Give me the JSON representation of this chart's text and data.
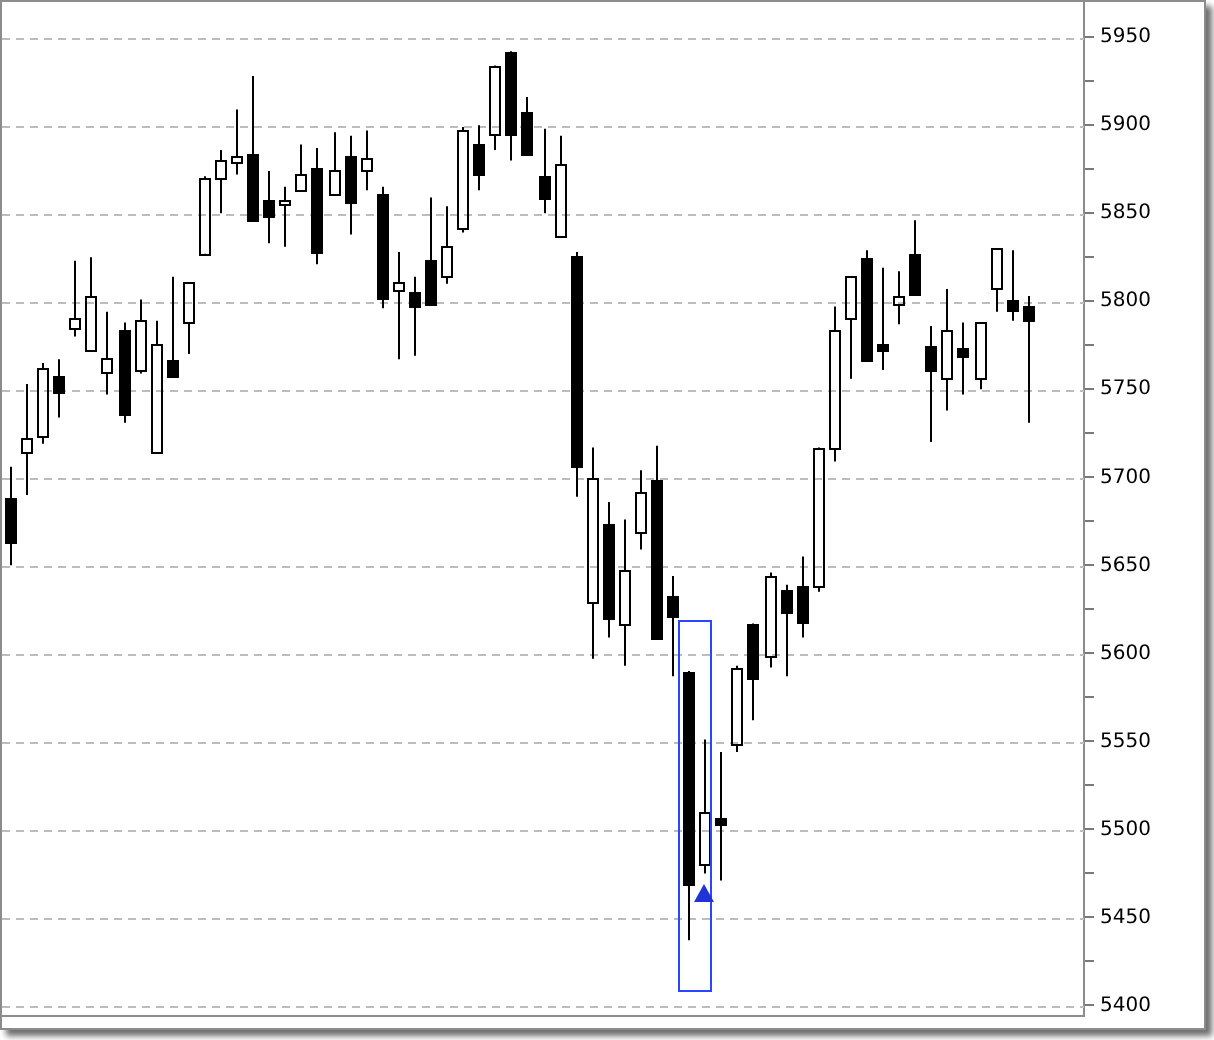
{
  "chart_data": {
    "type": "candlestick",
    "categories": [
      null,
      null,
      null,
      null,
      null,
      null,
      null,
      null,
      null,
      null,
      null,
      null,
      null,
      null,
      null,
      null,
      null,
      null,
      null,
      null,
      null,
      null,
      null,
      null,
      null,
      null,
      null,
      null,
      null,
      null,
      null,
      null,
      null,
      null,
      null,
      null,
      null,
      null,
      null,
      null,
      null,
      null,
      null,
      null,
      null,
      null,
      null,
      null,
      null,
      null,
      null,
      null,
      null,
      null,
      null,
      null,
      null,
      null,
      null,
      null,
      null,
      null,
      null,
      null,
      null,
      null,
      null
    ],
    "ohlc": [
      [
        5688,
        5706,
        5650,
        5663
      ],
      [
        5714,
        5753,
        5690,
        5722
      ],
      [
        5723,
        5765,
        5719,
        5762
      ],
      [
        5757,
        5767,
        5734,
        5748
      ],
      [
        5785,
        5823,
        5780,
        5791
      ],
      [
        5772,
        5825,
        5772,
        5803
      ],
      [
        5760,
        5794,
        5747,
        5768
      ],
      [
        5784,
        5788,
        5731,
        5736
      ],
      [
        5761,
        5801,
        5759,
        5789
      ],
      [
        5714,
        5789,
        5714,
        5776
      ],
      [
        5767,
        5814,
        5757,
        5757
      ],
      [
        5788,
        5811,
        5770,
        5811
      ],
      [
        5827,
        5871,
        5827,
        5870
      ],
      [
        5870,
        5886,
        5850,
        5880
      ],
      [
        5879,
        5909,
        5872,
        5882
      ],
      [
        5884,
        5928,
        5846,
        5846
      ],
      [
        5858,
        5874,
        5833,
        5848
      ],
      [
        5855,
        5865,
        5831,
        5858
      ],
      [
        5863,
        5889,
        5863,
        5872
      ],
      [
        5876,
        5887,
        5821,
        5828
      ],
      [
        5861,
        5896,
        5861,
        5875
      ],
      [
        5883,
        5894,
        5838,
        5856
      ],
      [
        5874,
        5897,
        5863,
        5881
      ],
      [
        5861,
        5865,
        5796,
        5802
      ],
      [
        5806,
        5828,
        5767,
        5811
      ],
      [
        5805,
        5814,
        5769,
        5797
      ],
      [
        5823,
        5859,
        5798,
        5798
      ],
      [
        5814,
        5854,
        5810,
        5831
      ],
      [
        5842,
        5899,
        5839,
        5897
      ],
      [
        5889,
        5900,
        5863,
        5872
      ],
      [
        5895,
        5934,
        5886,
        5934
      ],
      [
        5942,
        5942,
        5880,
        5895
      ],
      [
        5907,
        5916,
        5884,
        5884
      ],
      [
        5871,
        5898,
        5850,
        5859
      ],
      [
        5837,
        5894,
        5836,
        5878
      ],
      [
        5826,
        5828,
        5689,
        5706
      ],
      [
        5629,
        5717,
        5597,
        5700
      ],
      [
        5673,
        5686,
        5609,
        5620
      ],
      [
        5617,
        5676,
        5593,
        5647
      ],
      [
        5669,
        5704,
        5659,
        5692
      ],
      [
        5699,
        5718,
        5609,
        5609
      ],
      [
        5633,
        5644,
        5587,
        5621
      ],
      [
        5589,
        5590,
        5437,
        5469
      ],
      [
        5480,
        5551,
        5475,
        5510
      ],
      [
        5507,
        5544,
        5471,
        5503
      ],
      [
        5548,
        5593,
        5544,
        5592
      ],
      [
        5617,
        5617,
        5562,
        5586
      ],
      [
        5599,
        5646,
        5592,
        5644
      ],
      [
        5636,
        5639,
        5587,
        5623
      ],
      [
        5638,
        5655,
        5609,
        5618
      ],
      [
        5638,
        5717,
        5635,
        5717
      ],
      [
        5717,
        5797,
        5709,
        5784
      ],
      [
        5790,
        5814,
        5756,
        5814
      ],
      [
        5825,
        5829,
        5767,
        5767
      ],
      [
        5776,
        5819,
        5761,
        5772
      ],
      [
        5799,
        5817,
        5787,
        5803
      ],
      [
        5827,
        5846,
        5804,
        5804
      ],
      [
        5775,
        5786,
        5720,
        5761
      ],
      [
        5756,
        5807,
        5738,
        5784
      ],
      [
        5773,
        5788,
        5747,
        5769
      ],
      [
        5756,
        5788,
        5750,
        5788
      ],
      [
        5808,
        5830,
        5794,
        5830
      ],
      [
        5801,
        5829,
        5789,
        5795
      ],
      [
        5797,
        5803,
        5731,
        5789
      ],
      null,
      null,
      null
    ],
    "color": "#000000",
    "ylim": [
      5394,
      5970
    ],
    "yticks": [
      5400,
      {
        "value": 5425,
        "label": null
      },
      5450,
      {
        "value": 5475,
        "label": null
      },
      5500,
      {
        "value": 5525,
        "label": null
      },
      5550,
      {
        "value": 5575,
        "label": null
      },
      5600,
      {
        "value": 5625,
        "label": null
      },
      5650,
      {
        "value": 5675,
        "label": null
      },
      5700,
      {
        "value": 5725,
        "label": null
      },
      5750,
      {
        "value": 5775,
        "label": null
      },
      5800,
      {
        "value": 5825,
        "label": null
      },
      5850,
      {
        "value": 5875,
        "label": null
      },
      5900,
      {
        "value": 5925,
        "label": null
      },
      5950
    ],
    "tick_labels": "y",
    "grid": "y"
  }
}
